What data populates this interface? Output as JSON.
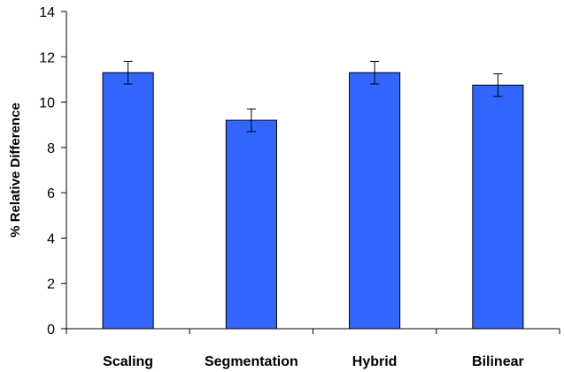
{
  "chart_data": {
    "type": "bar",
    "title": "",
    "xlabel": "",
    "ylabel": "% Relative Difference",
    "ylim": [
      0,
      14
    ],
    "yticks": [
      0,
      2,
      4,
      6,
      8,
      10,
      12,
      14
    ],
    "grid": false,
    "legend": "none",
    "categories": [
      "Scaling",
      "Segmentation",
      "Hybrid",
      "Bilinear"
    ],
    "series": [
      {
        "values": [
          11.3,
          9.2,
          11.3,
          10.75
        ],
        "error": [
          0.5,
          0.5,
          0.5,
          0.5
        ],
        "color": "#3366ff",
        "edge_color": "#000000"
      }
    ]
  }
}
